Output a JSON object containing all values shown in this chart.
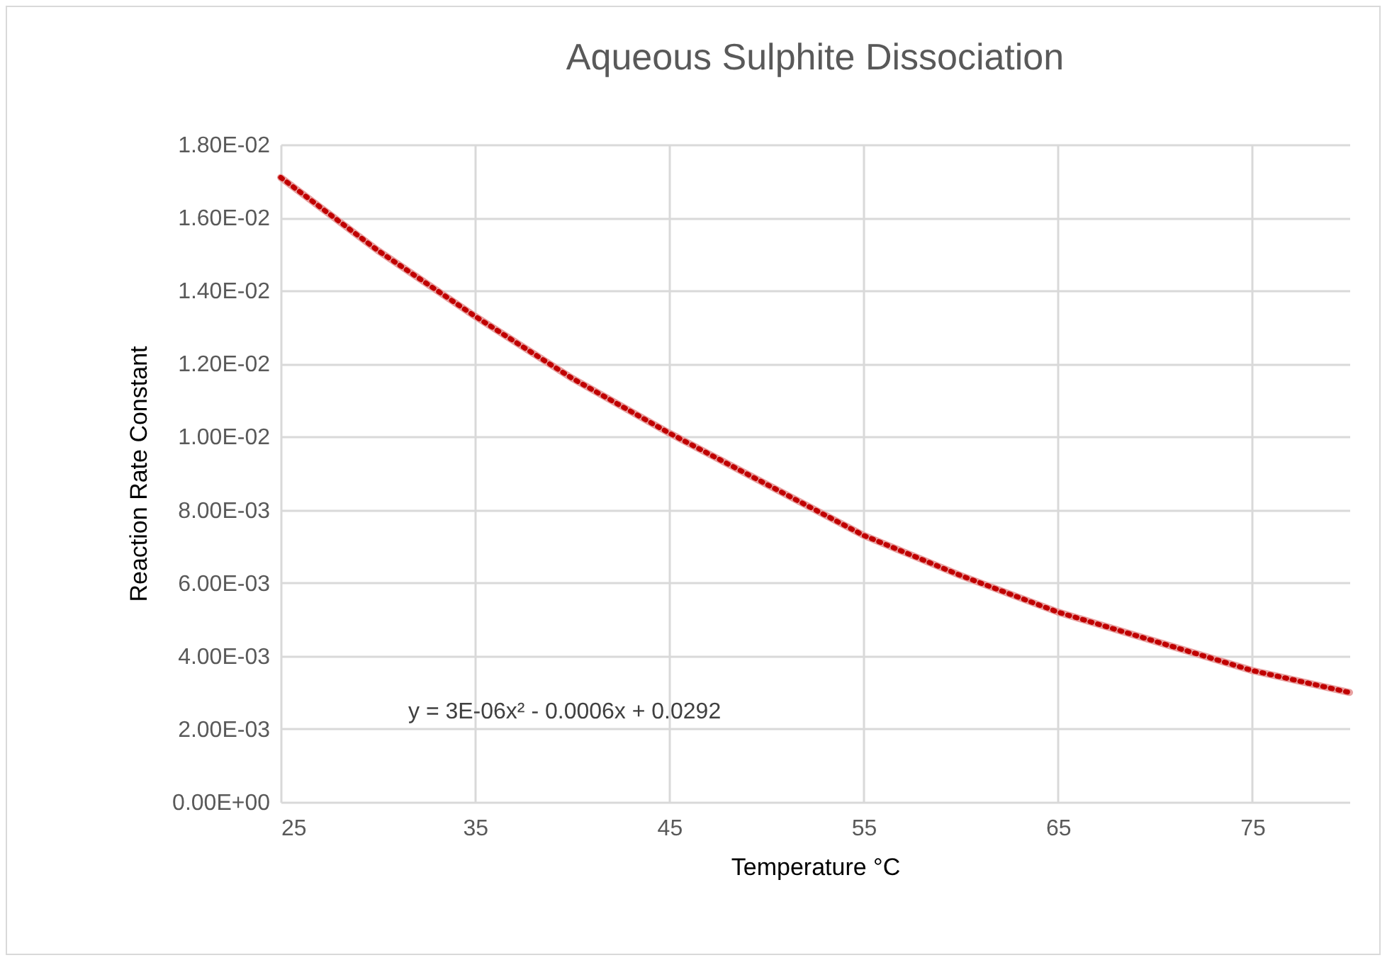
{
  "chart_data": {
    "type": "line",
    "title": "Aqueous Sulphite Dissociation",
    "xlabel": "Temperature °C",
    "ylabel": "Reaction Rate Constant",
    "annotations": [
      "y = 3E-06x² - 0.0006x + 0.0292"
    ],
    "x": [
      25,
      30,
      35,
      40,
      45,
      50,
      55,
      60,
      65,
      70,
      75,
      80
    ],
    "series": [
      {
        "color": "#e8a0a0",
        "line_style": "solid",
        "values": [
          0.0171,
          0.0151,
          0.0133,
          0.0116,
          0.0101,
          0.0087,
          0.0073,
          0.0062,
          0.0052,
          0.0044,
          0.0036,
          0.003
        ]
      },
      {
        "color": "#c00000",
        "line_style": "dotted",
        "values": [
          0.0171,
          0.0151,
          0.0133,
          0.0116,
          0.0101,
          0.0087,
          0.0073,
          0.0062,
          0.0052,
          0.0044,
          0.0036,
          0.003
        ]
      }
    ],
    "xlim": [
      25,
      80
    ],
    "xticks": [
      25,
      35,
      45,
      55,
      65,
      75
    ],
    "ylim": [
      0,
      0.018
    ],
    "yticks": [
      {
        "value": 0,
        "label": "0.00E+00"
      },
      {
        "value": 0.002,
        "label": "2.00E-03"
      },
      {
        "value": 0.004,
        "label": "4.00E-03"
      },
      {
        "value": 0.006,
        "label": "6.00E-03"
      },
      {
        "value": 0.008,
        "label": "8.00E-03"
      },
      {
        "value": 0.01,
        "label": "1.00E-02"
      },
      {
        "value": 0.012,
        "label": "1.20E-02"
      },
      {
        "value": 0.014,
        "label": "1.40E-02"
      },
      {
        "value": 0.016,
        "label": "1.60E-02"
      },
      {
        "value": 0.018,
        "label": "1.80E-02"
      }
    ],
    "grid": true,
    "marker": "none"
  }
}
